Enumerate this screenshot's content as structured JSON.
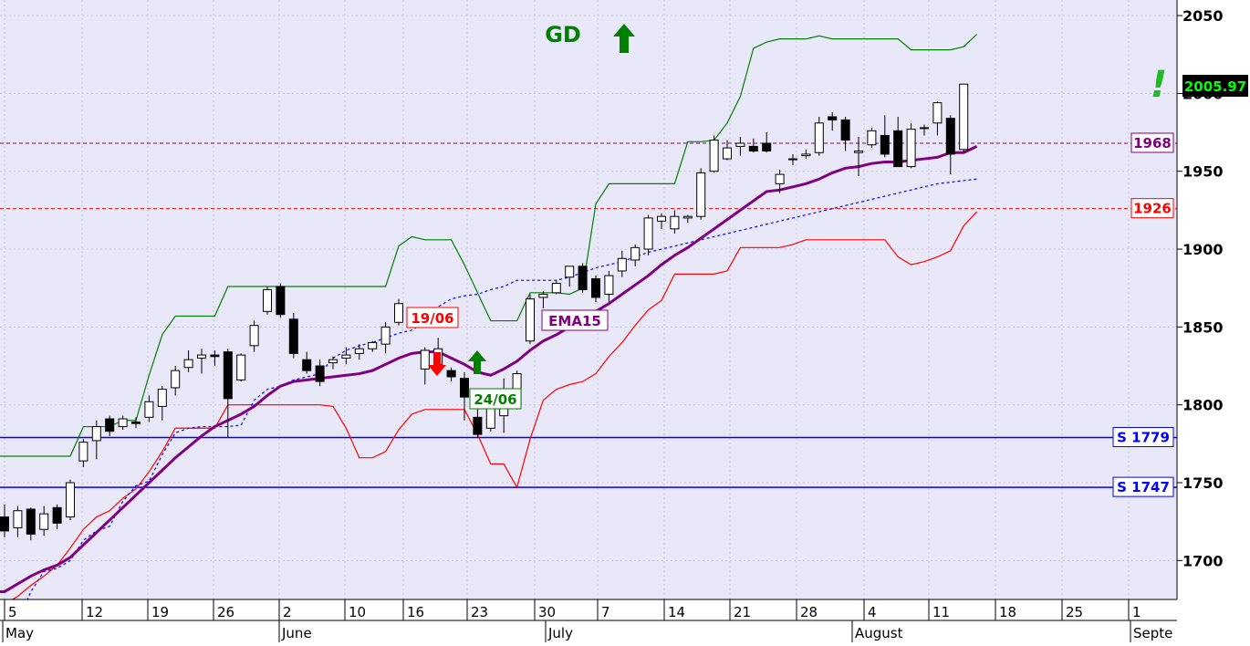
{
  "chart_data": {
    "type": "candlestick",
    "ylim": [
      1675,
      2060
    ],
    "y_ticks": [
      1700,
      1750,
      1800,
      1850,
      1900,
      1950,
      2000,
      2050
    ],
    "x_day_labels": [
      "5",
      "12",
      "19",
      "26",
      "2",
      "10",
      "16",
      "23",
      "30",
      "7",
      "14",
      "21",
      "28",
      "4",
      "11",
      "18",
      "25",
      "1"
    ],
    "x_month_labels": [
      "May",
      "June",
      "July",
      "August",
      "Septe"
    ],
    "last_price": "2005.97",
    "candles": [
      {
        "date": "May 5",
        "o": 1728,
        "h": 1736,
        "l": 1715,
        "c": 1719
      },
      {
        "date": "May 6",
        "o": 1721,
        "h": 1735,
        "l": 1715,
        "c": 1732
      },
      {
        "date": "May 7",
        "o": 1733,
        "h": 1734,
        "l": 1713,
        "c": 1717
      },
      {
        "date": "May 8",
        "o": 1720,
        "h": 1735,
        "l": 1716,
        "c": 1730
      },
      {
        "date": "May 9",
        "o": 1734,
        "h": 1736,
        "l": 1720,
        "c": 1724
      },
      {
        "date": "May 12",
        "o": 1728,
        "h": 1752,
        "l": 1726,
        "c": 1750
      },
      {
        "date": "May 13",
        "o": 1764,
        "h": 1778,
        "l": 1760,
        "c": 1776
      },
      {
        "date": "May 14",
        "o": 1777,
        "h": 1790,
        "l": 1765,
        "c": 1786
      },
      {
        "date": "May 15",
        "o": 1791,
        "h": 1793,
        "l": 1780,
        "c": 1783
      },
      {
        "date": "May 16",
        "o": 1786,
        "h": 1793,
        "l": 1784,
        "c": 1791
      },
      {
        "date": "May 19",
        "o": 1789,
        "h": 1792,
        "l": 1785,
        "c": 1788
      },
      {
        "date": "May 20",
        "o": 1792,
        "h": 1806,
        "l": 1789,
        "c": 1802
      },
      {
        "date": "May 21",
        "o": 1799,
        "h": 1812,
        "l": 1790,
        "c": 1810
      },
      {
        "date": "May 22",
        "o": 1811,
        "h": 1825,
        "l": 1806,
        "c": 1822
      },
      {
        "date": "May 23",
        "o": 1824,
        "h": 1835,
        "l": 1821,
        "c": 1829
      },
      {
        "date": "May 27",
        "o": 1830,
        "h": 1836,
        "l": 1820,
        "c": 1832
      },
      {
        "date": "May 28",
        "o": 1832,
        "h": 1835,
        "l": 1825,
        "c": 1831
      },
      {
        "date": "May 29",
        "o": 1834,
        "h": 1836,
        "l": 1779,
        "c": 1804
      },
      {
        "date": "May 30",
        "o": 1816,
        "h": 1833,
        "l": 1815,
        "c": 1832
      },
      {
        "date": "Jun 2",
        "o": 1838,
        "h": 1854,
        "l": 1834,
        "c": 1851
      },
      {
        "date": "Jun 3",
        "o": 1860,
        "h": 1876,
        "l": 1858,
        "c": 1874
      },
      {
        "date": "Jun 4",
        "o": 1876,
        "h": 1878,
        "l": 1856,
        "c": 1858
      },
      {
        "date": "Jun 5",
        "o": 1855,
        "h": 1859,
        "l": 1830,
        "c": 1833
      },
      {
        "date": "Jun 6",
        "o": 1829,
        "h": 1834,
        "l": 1820,
        "c": 1822
      },
      {
        "date": "Jun 9",
        "o": 1825,
        "h": 1829,
        "l": 1812,
        "c": 1815
      },
      {
        "date": "Jun 10",
        "o": 1827,
        "h": 1831,
        "l": 1823,
        "c": 1829
      },
      {
        "date": "Jun 11",
        "o": 1830,
        "h": 1837,
        "l": 1826,
        "c": 1832
      },
      {
        "date": "Jun 12",
        "o": 1833,
        "h": 1839,
        "l": 1829,
        "c": 1836
      },
      {
        "date": "Jun 13",
        "o": 1836,
        "h": 1841,
        "l": 1834,
        "c": 1840
      },
      {
        "date": "Jun 16",
        "o": 1839,
        "h": 1853,
        "l": 1833,
        "c": 1850
      },
      {
        "date": "Jun 17",
        "o": 1853,
        "h": 1868,
        "l": 1851,
        "c": 1865
      },
      {
        "date": "Jun 18",
        "o": 1858,
        "h": 1862,
        "l": 1851,
        "c": 1855
      },
      {
        "date": "Jun 19",
        "o": 1823,
        "h": 1837,
        "l": 1813,
        "c": 1835
      },
      {
        "date": "Jun 20",
        "o": 1826,
        "h": 1843,
        "l": 1824,
        "c": 1836
      },
      {
        "date": "Jun 23",
        "o": 1822,
        "h": 1824,
        "l": 1815,
        "c": 1818
      },
      {
        "date": "Jun 24",
        "o": 1817,
        "h": 1821,
        "l": 1790,
        "c": 1805
      },
      {
        "date": "Jun 25",
        "o": 1792,
        "h": 1800,
        "l": 1779,
        "c": 1781
      },
      {
        "date": "Jun 26",
        "o": 1785,
        "h": 1809,
        "l": 1783,
        "c": 1800
      },
      {
        "date": "Jun 27",
        "o": 1793,
        "h": 1817,
        "l": 1782,
        "c": 1808
      },
      {
        "date": "Jun 30",
        "o": 1800,
        "h": 1822,
        "l": 1797,
        "c": 1820
      },
      {
        "date": "Jul 1",
        "o": 1841,
        "h": 1871,
        "l": 1839,
        "c": 1868
      },
      {
        "date": "Jul 2",
        "o": 1869,
        "h": 1873,
        "l": 1862,
        "c": 1871
      },
      {
        "date": "Jul 3",
        "o": 1872,
        "h": 1880,
        "l": 1871,
        "c": 1878
      },
      {
        "date": "Jul 4",
        "o": 1882,
        "h": 1889,
        "l": 1876,
        "c": 1889
      },
      {
        "date": "Jul 7",
        "o": 1889,
        "h": 1891,
        "l": 1872,
        "c": 1874
      },
      {
        "date": "Jul 8",
        "o": 1881,
        "h": 1883,
        "l": 1866,
        "c": 1869
      },
      {
        "date": "Jul 9",
        "o": 1871,
        "h": 1886,
        "l": 1866,
        "c": 1883
      },
      {
        "date": "Jul 10",
        "o": 1886,
        "h": 1899,
        "l": 1882,
        "c": 1894
      },
      {
        "date": "Jul 11",
        "o": 1893,
        "h": 1903,
        "l": 1889,
        "c": 1901
      },
      {
        "date": "Jul 14",
        "o": 1900,
        "h": 1922,
        "l": 1896,
        "c": 1920
      },
      {
        "date": "Jul 15",
        "o": 1918,
        "h": 1923,
        "l": 1913,
        "c": 1921
      },
      {
        "date": "Jul 16",
        "o": 1913,
        "h": 1925,
        "l": 1910,
        "c": 1921
      },
      {
        "date": "Jul 17",
        "o": 1920,
        "h": 1922,
        "l": 1917,
        "c": 1921
      },
      {
        "date": "Jul 18",
        "o": 1921,
        "h": 1952,
        "l": 1919,
        "c": 1949
      },
      {
        "date": "Jul 21",
        "o": 1950,
        "h": 1973,
        "l": 1949,
        "c": 1970
      },
      {
        "date": "Jul 22",
        "o": 1958,
        "h": 1970,
        "l": 1957,
        "c": 1965
      },
      {
        "date": "Jul 23",
        "o": 1966,
        "h": 1972,
        "l": 1960,
        "c": 1968
      },
      {
        "date": "Jul 24",
        "o": 1966,
        "h": 1971,
        "l": 1962,
        "c": 1963
      },
      {
        "date": "Jul 25",
        "o": 1968,
        "h": 1975,
        "l": 1962,
        "c": 1963
      },
      {
        "date": "Jul 28",
        "o": 1942,
        "h": 1951,
        "l": 1936,
        "c": 1948
      },
      {
        "date": "Jul 29",
        "o": 1958,
        "h": 1961,
        "l": 1954,
        "c": 1958
      },
      {
        "date": "Jul 30",
        "o": 1960,
        "h": 1964,
        "l": 1958,
        "c": 1961
      },
      {
        "date": "Jul 31",
        "o": 1962,
        "h": 1985,
        "l": 1960,
        "c": 1981
      },
      {
        "date": "Aug 1",
        "o": 1985,
        "h": 1988,
        "l": 1976,
        "c": 1983
      },
      {
        "date": "Aug 4",
        "o": 1983,
        "h": 1985,
        "l": 1963,
        "c": 1970
      },
      {
        "date": "Aug 5",
        "o": 1962,
        "h": 1972,
        "l": 1947,
        "c": 1963
      },
      {
        "date": "Aug 6",
        "o": 1967,
        "h": 1978,
        "l": 1965,
        "c": 1976
      },
      {
        "date": "Aug 7",
        "o": 1973,
        "h": 1986,
        "l": 1959,
        "c": 1961
      },
      {
        "date": "Aug 8",
        "o": 1976,
        "h": 1985,
        "l": 1953,
        "c": 1953
      },
      {
        "date": "Aug 11",
        "o": 1953,
        "h": 1981,
        "l": 1952,
        "c": 1977
      },
      {
        "date": "Aug 12",
        "o": 1978,
        "h": 1980,
        "l": 1973,
        "c": 1978
      },
      {
        "date": "Aug 13",
        "o": 1981,
        "h": 1995,
        "l": 1973,
        "c": 1994
      },
      {
        "date": "Aug 14",
        "o": 1984,
        "h": 1986,
        "l": 1948,
        "c": 1961
      },
      {
        "date": "Aug 15",
        "o": 1964,
        "h": 2006,
        "l": 1962,
        "c": 2005.97
      }
    ],
    "ema15": [
      1680,
      1685,
      1690,
      1694,
      1697,
      1702,
      1710,
      1718,
      1726,
      1734,
      1742,
      1750,
      1758,
      1766,
      1773,
      1780,
      1786,
      1790,
      1794,
      1799,
      1806,
      1812,
      1815,
      1816,
      1817,
      1818,
      1819,
      1820,
      1822,
      1826,
      1830,
      1833,
      1834,
      1834,
      1830,
      1826,
      1821,
      1819,
      1823,
      1828,
      1835,
      1841,
      1845,
      1850,
      1855,
      1860,
      1865,
      1871,
      1877,
      1883,
      1890,
      1896,
      1901,
      1907,
      1913,
      1919,
      1925,
      1931,
      1937,
      1938,
      1940,
      1942,
      1945,
      1949,
      1952,
      1953,
      1955,
      1956,
      1956,
      1957,
      1958,
      1959,
      1962,
      1962,
      1966
    ],
    "upper_band": [
      1767,
      1767,
      1767,
      1767,
      1767,
      1767,
      1786,
      1786,
      1786,
      1790,
      1790,
      1819,
      1845,
      1857,
      1857,
      1857,
      1857,
      1876,
      1876,
      1876,
      1876,
      1876,
      1876,
      1876,
      1876,
      1876,
      1876,
      1876,
      1876,
      1876,
      1902,
      1908,
      1906,
      1906,
      1906,
      1890,
      1872,
      1854,
      1854,
      1854,
      1872,
      1872,
      1872,
      1871,
      1875,
      1929,
      1942,
      1942,
      1942,
      1942,
      1942,
      1942,
      1969,
      1969,
      1970,
      1981,
      1998,
      2029,
      2033,
      2035,
      2035,
      2035,
      2037,
      2035,
      2035,
      2035,
      2035,
      2035,
      2035,
      2028,
      2028,
      2028,
      2028,
      2030,
      2038
    ],
    "lower_band": [
      1672,
      1677,
      1684,
      1690,
      1697,
      1708,
      1720,
      1728,
      1732,
      1740,
      1746,
      1757,
      1770,
      1785,
      1785,
      1785,
      1785,
      1800,
      1800,
      1800,
      1800,
      1800,
      1800,
      1800,
      1800,
      1799,
      1785,
      1766,
      1766,
      1770,
      1784,
      1794,
      1797,
      1797,
      1797,
      1797,
      1781,
      1762,
      1762,
      1747,
      1778,
      1803,
      1810,
      1813,
      1815,
      1820,
      1831,
      1840,
      1851,
      1861,
      1867,
      1884,
      1884,
      1884,
      1884,
      1886,
      1901,
      1901,
      1901,
      1901,
      1903,
      1906,
      1906,
      1906,
      1906,
      1906,
      1906,
      1906,
      1895,
      1890,
      1892,
      1895,
      1899,
      1915,
      1924
    ],
    "dotted_support": [
      1660,
      1660,
      1680,
      1693,
      1695,
      1700,
      1713,
      1719,
      1722,
      1738,
      1748,
      1751,
      1768,
      1782,
      1785,
      1786,
      1786,
      1786,
      1787,
      1803,
      1810,
      1812,
      1816,
      1818,
      1820,
      1830,
      1835,
      1838,
      1840,
      1843,
      1846,
      1848,
      1853,
      1863,
      1868,
      1870,
      1871,
      1874,
      1876,
      1880,
      1880,
      1880,
      1880,
      1882,
      1885,
      1888,
      1890,
      1892,
      1895,
      1898,
      1900,
      1902,
      1904,
      1906,
      1908,
      1910,
      1912,
      1914,
      1916,
      1918,
      1920,
      1922,
      1924,
      1926,
      1928,
      1930,
      1932,
      1934,
      1936,
      1938,
      1940,
      1942,
      1943,
      1944,
      1945
    ],
    "h_lines": [
      {
        "label": "1968",
        "value": 1968,
        "color": "#800080",
        "style": "dashed"
      },
      {
        "label": "1926",
        "value": 1926,
        "color": "#ff0000",
        "style": "dashed"
      },
      {
        "label": "S 1779",
        "value": 1779,
        "color": "#0000ff",
        "style": "solid"
      },
      {
        "label": "S 1747",
        "value": 1747,
        "color": "#0000ff",
        "style": "solid"
      }
    ],
    "annotations": {
      "gd": "GD",
      "exclamation": "!",
      "ema": "EMA15",
      "date_1906": "19/06",
      "date_2406": "24/06"
    },
    "colors": {
      "background": "#e8e8f8",
      "ema": "#800080",
      "upper": "#008000",
      "lower": "#ff0000",
      "dotted": "#0000ff",
      "price_box": "#00ff00"
    }
  }
}
